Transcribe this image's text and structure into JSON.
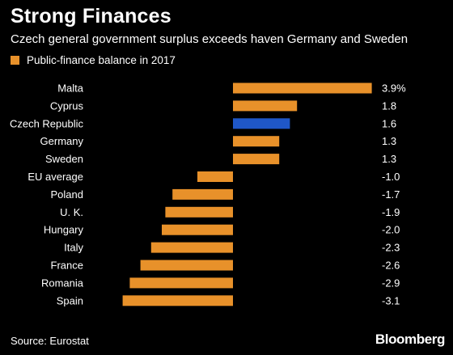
{
  "header": {
    "title": "Strong Finances",
    "subtitle": "Czech general government surplus exceeds haven Germany and Sweden"
  },
  "footer": {
    "source": "Source: Eurostat",
    "brand": "Bloomberg"
  },
  "colors": {
    "background": "#000000",
    "bar_default": "#e8912a",
    "bar_highlight": "#1f57c8"
  },
  "chart_data": {
    "type": "bar",
    "orientation": "horizontal",
    "categories": [
      "Malta",
      "Cyprus",
      "Czech Republic",
      "Germany",
      "Sweden",
      "EU average",
      "Poland",
      "U. K.",
      "Hungary",
      "Italy",
      "France",
      "Romania",
      "Spain"
    ],
    "series": [
      {
        "name": "Public-finance balance in 2017",
        "values": [
          3.9,
          1.8,
          1.6,
          1.3,
          1.3,
          -1.0,
          -1.7,
          -1.9,
          -2.0,
          -2.3,
          -2.6,
          -2.9,
          -3.1
        ]
      }
    ],
    "value_labels": [
      "3.9%",
      "1.8",
      "1.6",
      "1.3",
      "1.3",
      "-1.0",
      "-1.7",
      "-1.9",
      "-2.0",
      "-2.3",
      "-2.6",
      "-2.9",
      "-3.1"
    ],
    "highlight_category": "Czech Republic",
    "xlim": [
      -3.1,
      3.9
    ],
    "legend_position": "top-left",
    "grid": false
  }
}
